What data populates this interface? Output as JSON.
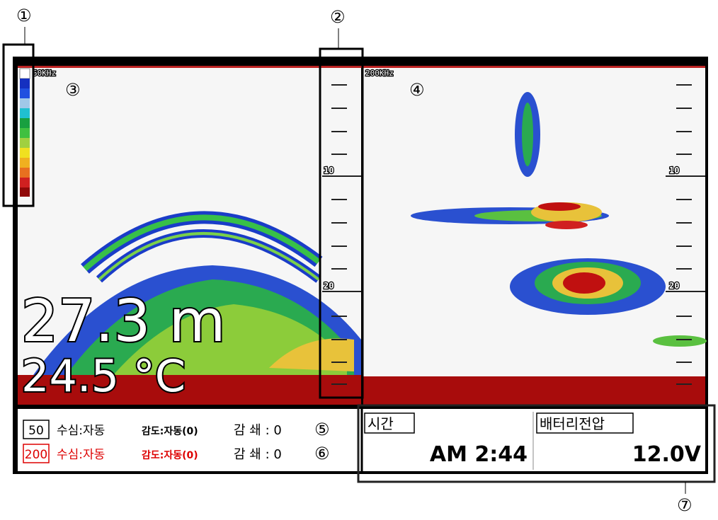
{
  "annotations": [
    "①",
    "②",
    "③",
    "④",
    "⑤",
    "⑥",
    "⑦"
  ],
  "left_pane": {
    "frequency": "50KHz",
    "depth": "27.3 m",
    "temperature": "24.5 °C",
    "scale_labels": [
      "10",
      "20"
    ]
  },
  "right_pane": {
    "frequency": "200KHz",
    "scale_labels": [
      "10",
      "20"
    ]
  },
  "status": {
    "rows": [
      {
        "channel": "50",
        "depth_mode": "수심:자동",
        "gain": "감도:자동(0)",
        "attenuation": "감 쇄 : 0"
      },
      {
        "channel": "200",
        "depth_mode": "수심:자동",
        "gain": "감도:자동(0)",
        "attenuation": "감 쇄 : 0"
      }
    ]
  },
  "time": {
    "label": "시간",
    "value": "AM  2:44"
  },
  "battery": {
    "label": "배터리전압",
    "value": "12.0V"
  }
}
